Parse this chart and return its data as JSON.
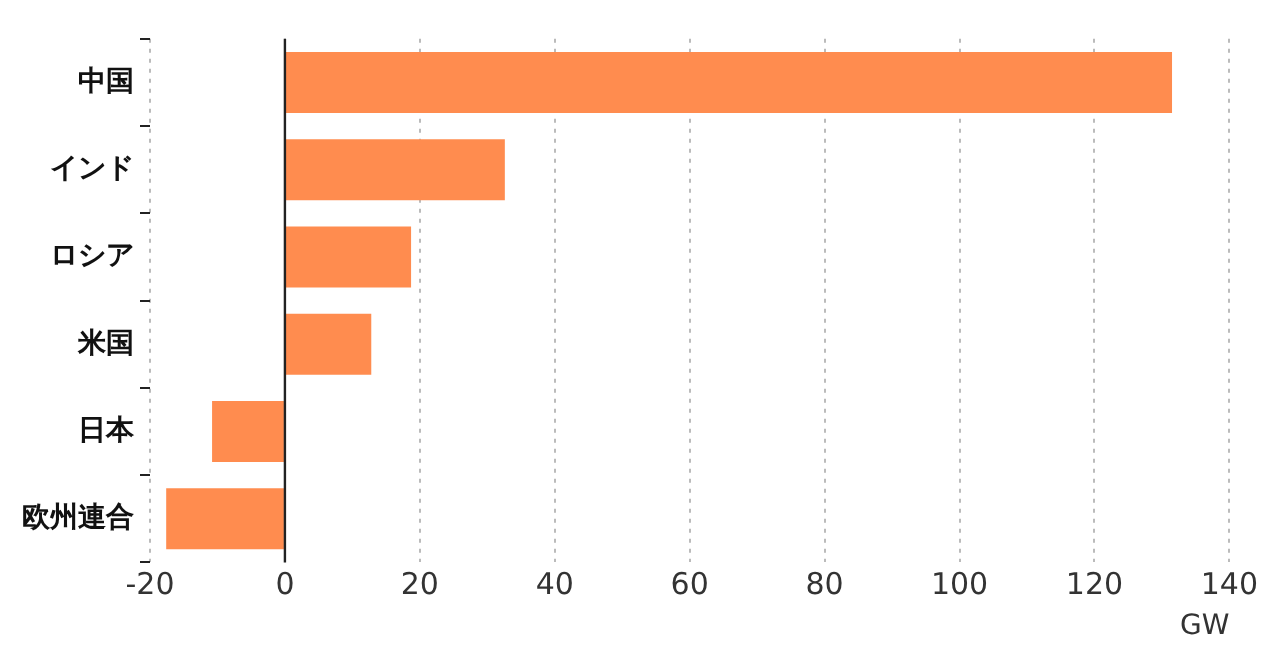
{
  "chart_data": {
    "type": "bar",
    "orientation": "horizontal",
    "categories": [
      "中国",
      "インド",
      "ロシア",
      "米国",
      "日本",
      "欧州連合"
    ],
    "values": [
      131.5,
      32.6,
      18.7,
      12.8,
      -10.8,
      -17.6
    ],
    "color": "#ff8c4f",
    "xlim": [
      -20,
      140
    ],
    "xticks": [
      -20,
      0,
      20,
      40,
      60,
      80,
      100,
      120,
      140
    ],
    "xlabel": "GW",
    "grid": "x"
  }
}
